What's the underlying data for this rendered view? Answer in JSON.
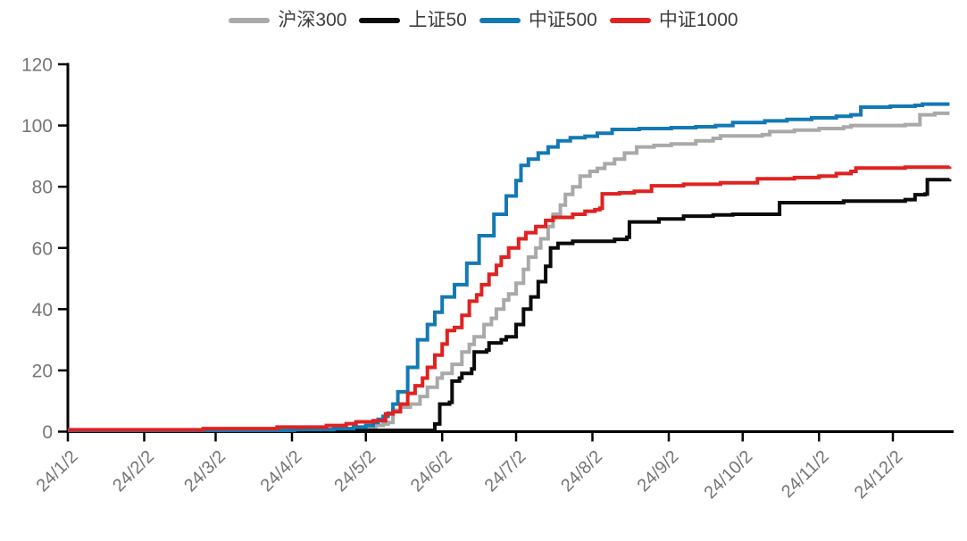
{
  "chart_data": {
    "type": "line",
    "title": "",
    "grid": false,
    "legend_position": "top-center",
    "step_interpolation": true,
    "x_axis": {
      "unit": "date (yy/m/d)",
      "tick_labels": [
        "24/1/2",
        "24/2/2",
        "24/3/2",
        "24/4/2",
        "24/5/2",
        "24/6/2",
        "24/7/2",
        "24/8/2",
        "24/9/2",
        "24/10/2",
        "24/11/2",
        "24/12/2"
      ],
      "tick_days": [
        0,
        31,
        60,
        91,
        121,
        152,
        182,
        213,
        244,
        274,
        305,
        335
      ],
      "range_days": [
        0,
        358
      ]
    },
    "y_axis": {
      "ticks": [
        0,
        20,
        40,
        60,
        80,
        100,
        120
      ],
      "range": [
        0,
        120
      ]
    },
    "series": [
      {
        "id": "hs300",
        "name": "沪深300",
        "color": "#a9a9a9",
        "points": [
          [
            0,
            0.3
          ],
          [
            90,
            0.6
          ],
          [
            110,
            1
          ],
          [
            120,
            1.5
          ],
          [
            125,
            2
          ],
          [
            128,
            2.5
          ],
          [
            130,
            3
          ],
          [
            132,
            7
          ],
          [
            135,
            8
          ],
          [
            139,
            9
          ],
          [
            143,
            11.5
          ],
          [
            146,
            14.5
          ],
          [
            150,
            17.5
          ],
          [
            152,
            19
          ],
          [
            156,
            22
          ],
          [
            160,
            26
          ],
          [
            163,
            28.5
          ],
          [
            165,
            31
          ],
          [
            169,
            35
          ],
          [
            172,
            37
          ],
          [
            174,
            40
          ],
          [
            177,
            43
          ],
          [
            179,
            45
          ],
          [
            182,
            48.5
          ],
          [
            185,
            53
          ],
          [
            187,
            57
          ],
          [
            190,
            60
          ],
          [
            192,
            63
          ],
          [
            195,
            67
          ],
          [
            197,
            71
          ],
          [
            200,
            74
          ],
          [
            202,
            77.5
          ],
          [
            205,
            80
          ],
          [
            208,
            83.5
          ],
          [
            212,
            85
          ],
          [
            215,
            86
          ],
          [
            218,
            87.5
          ],
          [
            222,
            89
          ],
          [
            226,
            91
          ],
          [
            231,
            93
          ],
          [
            238,
            93.5
          ],
          [
            245,
            94
          ],
          [
            255,
            95
          ],
          [
            262,
            95.8
          ],
          [
            265,
            96.6
          ],
          [
            282,
            97
          ],
          [
            285,
            98
          ],
          [
            295,
            98.5
          ],
          [
            305,
            99
          ],
          [
            315,
            99.5
          ],
          [
            318,
            100
          ],
          [
            340,
            100.3
          ],
          [
            346,
            103.5
          ],
          [
            352,
            104
          ],
          [
            358,
            104
          ]
        ]
      },
      {
        "id": "sz50",
        "name": "上证50",
        "color": "#0b0b0b",
        "points": [
          [
            0,
            0.3
          ],
          [
            115,
            0.4
          ],
          [
            147,
            0.4
          ],
          [
            149,
            2.5
          ],
          [
            151,
            9
          ],
          [
            155,
            9.6
          ],
          [
            156,
            16.5
          ],
          [
            159,
            17.5
          ],
          [
            160,
            19
          ],
          [
            164,
            20.5
          ],
          [
            165,
            26
          ],
          [
            170,
            26.6
          ],
          [
            171,
            29
          ],
          [
            176,
            30
          ],
          [
            178,
            31
          ],
          [
            182,
            35
          ],
          [
            185,
            40
          ],
          [
            188,
            44
          ],
          [
            191,
            49
          ],
          [
            194,
            54
          ],
          [
            196,
            60
          ],
          [
            199,
            61.5
          ],
          [
            205,
            62.2
          ],
          [
            222,
            62.8
          ],
          [
            227,
            63.5
          ],
          [
            228,
            68.5
          ],
          [
            240,
            69.5
          ],
          [
            250,
            70.4
          ],
          [
            262,
            70.8
          ],
          [
            270,
            71
          ],
          [
            288,
            71
          ],
          [
            289,
            74.8
          ],
          [
            315,
            75.3
          ],
          [
            340,
            75.8
          ],
          [
            344,
            77.4
          ],
          [
            348,
            77.6
          ],
          [
            349,
            82.3
          ],
          [
            358,
            82.5
          ]
        ]
      },
      {
        "id": "zz500",
        "name": "中证500",
        "color": "#1379b4",
        "points": [
          [
            0,
            0.4
          ],
          [
            92,
            0.7
          ],
          [
            108,
            1
          ],
          [
            116,
            1.5
          ],
          [
            121,
            2
          ],
          [
            124,
            3
          ],
          [
            126,
            4
          ],
          [
            128,
            5
          ],
          [
            130,
            6
          ],
          [
            132,
            9
          ],
          [
            134,
            13
          ],
          [
            138,
            21
          ],
          [
            142,
            30
          ],
          [
            146,
            35
          ],
          [
            149,
            39
          ],
          [
            152,
            44
          ],
          [
            157,
            48
          ],
          [
            162,
            55
          ],
          [
            167,
            64
          ],
          [
            173,
            71
          ],
          [
            178,
            77
          ],
          [
            182,
            82
          ],
          [
            184,
            87
          ],
          [
            187,
            89
          ],
          [
            191,
            91
          ],
          [
            195,
            93
          ],
          [
            199,
            95
          ],
          [
            204,
            96
          ],
          [
            210,
            96.5
          ],
          [
            215,
            97.5
          ],
          [
            221,
            98.7
          ],
          [
            232,
            99
          ],
          [
            245,
            99.3
          ],
          [
            255,
            99.6
          ],
          [
            263,
            100
          ],
          [
            270,
            101
          ],
          [
            283,
            101.5
          ],
          [
            292,
            102
          ],
          [
            302,
            102.5
          ],
          [
            312,
            103
          ],
          [
            318,
            103.5
          ],
          [
            322,
            106
          ],
          [
            334,
            106.3
          ],
          [
            344,
            106.6
          ],
          [
            347,
            107
          ],
          [
            358,
            107
          ]
        ]
      },
      {
        "id": "zz1000",
        "name": "中证1000",
        "color": "#e02220",
        "points": [
          [
            0,
            0.6
          ],
          [
            55,
            1
          ],
          [
            85,
            1.5
          ],
          [
            105,
            2
          ],
          [
            113,
            2.6
          ],
          [
            117,
            3.2
          ],
          [
            124,
            3.6
          ],
          [
            129,
            5.8
          ],
          [
            132,
            6.5
          ],
          [
            135,
            9
          ],
          [
            138,
            12.5
          ],
          [
            141,
            15
          ],
          [
            144,
            17.5
          ],
          [
            146,
            21
          ],
          [
            149,
            25
          ],
          [
            152,
            28.6
          ],
          [
            154,
            33
          ],
          [
            157,
            34
          ],
          [
            160,
            38
          ],
          [
            163,
            42.6
          ],
          [
            166,
            44.7
          ],
          [
            168,
            48
          ],
          [
            171,
            51.4
          ],
          [
            174,
            54.3
          ],
          [
            176,
            57
          ],
          [
            179,
            60
          ],
          [
            183,
            63
          ],
          [
            186,
            65
          ],
          [
            190,
            67
          ],
          [
            194,
            69
          ],
          [
            197,
            70
          ],
          [
            205,
            71
          ],
          [
            210,
            72
          ],
          [
            214,
            72.5
          ],
          [
            216,
            73
          ],
          [
            217,
            77.7
          ],
          [
            224,
            78
          ],
          [
            230,
            78.5
          ],
          [
            237,
            80.3
          ],
          [
            250,
            80.8
          ],
          [
            265,
            81.3
          ],
          [
            280,
            82.6
          ],
          [
            295,
            83
          ],
          [
            305,
            83.5
          ],
          [
            312,
            84.3
          ],
          [
            318,
            85
          ],
          [
            320,
            86.1
          ],
          [
            340,
            86.4
          ],
          [
            358,
            86.6
          ]
        ]
      }
    ]
  },
  "styles": {
    "background": "#ffffff",
    "axis_color": "#000000",
    "tick_label_color": "#757575",
    "legend_text_color": "#3d3d3d"
  }
}
